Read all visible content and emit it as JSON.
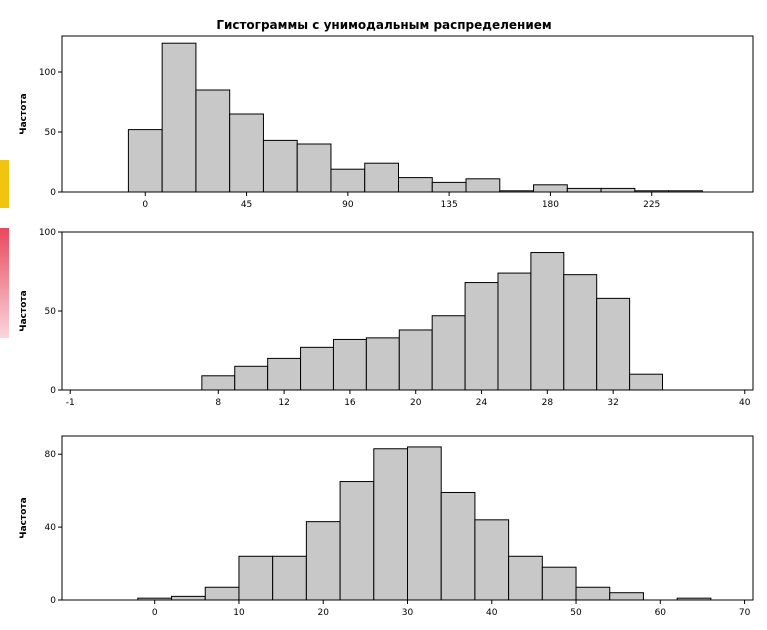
{
  "title": "Гистограммы с унимодальным распределением",
  "colors": {
    "bar_fill": "#c8c8c8",
    "bar_stroke": "#000000",
    "frame": "#000000",
    "text": "#000000"
  },
  "chart_data": [
    {
      "type": "bar",
      "ylabel": "Частота",
      "xlim": [
        -37,
        270
      ],
      "ylim": [
        0,
        130
      ],
      "xticks": [
        0,
        45,
        90,
        135,
        180,
        225
      ],
      "yticks": [
        0,
        50,
        100
      ],
      "bin_width": 15,
      "bins": [
        {
          "x0": -7.5,
          "x1": 7.5,
          "count": 52
        },
        {
          "x0": 7.5,
          "x1": 22.5,
          "count": 124
        },
        {
          "x0": 22.5,
          "x1": 37.5,
          "count": 85
        },
        {
          "x0": 37.5,
          "x1": 52.5,
          "count": 65
        },
        {
          "x0": 52.5,
          "x1": 67.5,
          "count": 43
        },
        {
          "x0": 67.5,
          "x1": 82.5,
          "count": 40
        },
        {
          "x0": 82.5,
          "x1": 97.5,
          "count": 19
        },
        {
          "x0": 97.5,
          "x1": 112.5,
          "count": 24
        },
        {
          "x0": 112.5,
          "x1": 127.5,
          "count": 12
        },
        {
          "x0": 127.5,
          "x1": 142.5,
          "count": 8
        },
        {
          "x0": 142.5,
          "x1": 157.5,
          "count": 11
        },
        {
          "x0": 157.5,
          "x1": 172.5,
          "count": 1
        },
        {
          "x0": 172.5,
          "x1": 187.5,
          "count": 6
        },
        {
          "x0": 187.5,
          "x1": 202.5,
          "count": 3
        },
        {
          "x0": 202.5,
          "x1": 217.5,
          "count": 3
        },
        {
          "x0": 217.5,
          "x1": 232.5,
          "count": 1
        },
        {
          "x0": 232.5,
          "x1": 247.5,
          "count": 1
        }
      ]
    },
    {
      "type": "bar",
      "ylabel": "Частота",
      "xlim": [
        -1.5,
        40.5
      ],
      "ylim": [
        0,
        100
      ],
      "xticks": [
        -1,
        8,
        12,
        16,
        20,
        24,
        28,
        32,
        40
      ],
      "yticks": [
        0,
        50,
        100
      ],
      "bin_width": 2,
      "bins": [
        {
          "x0": 7,
          "x1": 9,
          "count": 9
        },
        {
          "x0": 9,
          "x1": 11,
          "count": 15
        },
        {
          "x0": 11,
          "x1": 13,
          "count": 20
        },
        {
          "x0": 13,
          "x1": 15,
          "count": 27
        },
        {
          "x0": 15,
          "x1": 17,
          "count": 32
        },
        {
          "x0": 17,
          "x1": 19,
          "count": 33
        },
        {
          "x0": 19,
          "x1": 21,
          "count": 38
        },
        {
          "x0": 21,
          "x1": 23,
          "count": 47
        },
        {
          "x0": 23,
          "x1": 25,
          "count": 68
        },
        {
          "x0": 25,
          "x1": 27,
          "count": 74
        },
        {
          "x0": 27,
          "x1": 29,
          "count": 87
        },
        {
          "x0": 29,
          "x1": 31,
          "count": 73
        },
        {
          "x0": 31,
          "x1": 33,
          "count": 58
        },
        {
          "x0": 33,
          "x1": 35,
          "count": 10
        }
      ]
    },
    {
      "type": "bar",
      "ylabel": "Частота",
      "xlim": [
        -11,
        71
      ],
      "ylim": [
        0,
        90
      ],
      "xticks": [
        0,
        10,
        20,
        30,
        40,
        50,
        60,
        70
      ],
      "yticks": [
        0,
        40,
        80
      ],
      "bin_width": 4,
      "bins": [
        {
          "x0": -2,
          "x1": 2,
          "count": 1
        },
        {
          "x0": 2,
          "x1": 6,
          "count": 2
        },
        {
          "x0": 6,
          "x1": 10,
          "count": 7
        },
        {
          "x0": 10,
          "x1": 14,
          "count": 24
        },
        {
          "x0": 14,
          "x1": 18,
          "count": 24
        },
        {
          "x0": 18,
          "x1": 22,
          "count": 43
        },
        {
          "x0": 22,
          "x1": 26,
          "count": 65
        },
        {
          "x0": 26,
          "x1": 30,
          "count": 83
        },
        {
          "x0": 30,
          "x1": 34,
          "count": 84
        },
        {
          "x0": 34,
          "x1": 38,
          "count": 59
        },
        {
          "x0": 38,
          "x1": 42,
          "count": 44
        },
        {
          "x0": 42,
          "x1": 46,
          "count": 24
        },
        {
          "x0": 46,
          "x1": 50,
          "count": 18
        },
        {
          "x0": 50,
          "x1": 54,
          "count": 7
        },
        {
          "x0": 54,
          "x1": 58,
          "count": 4
        },
        {
          "x0": 58,
          "x1": 62,
          "count": 0
        },
        {
          "x0": 62,
          "x1": 66,
          "count": 1
        }
      ]
    }
  ]
}
